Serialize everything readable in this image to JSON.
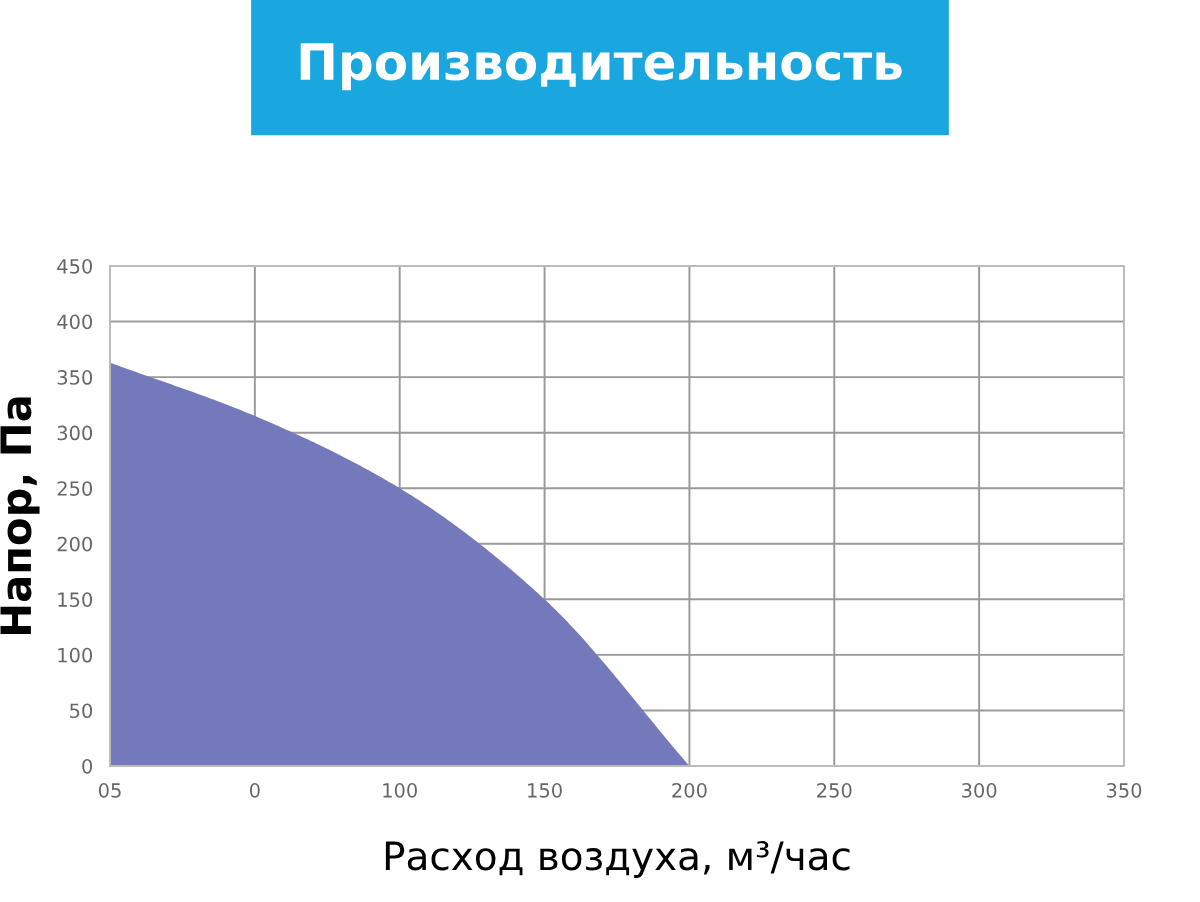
{
  "chart_data": {
    "type": "area",
    "title": "Производительность",
    "xlabel": "Расход воздуха, м³/час",
    "ylabel": "Напор, Па",
    "categories": [
      "05",
      "0",
      "100",
      "150",
      "200",
      "250",
      "300",
      "350"
    ],
    "series": [
      {
        "color": "#7479bb",
        "values": [
          363,
          315,
          250,
          150,
          0,
          null,
          null,
          null
        ]
      }
    ],
    "ylim": [
      0,
      450
    ],
    "yticks": [
      0,
      50,
      100,
      150,
      200,
      250,
      300,
      350,
      400,
      450
    ],
    "grid": true
  }
}
